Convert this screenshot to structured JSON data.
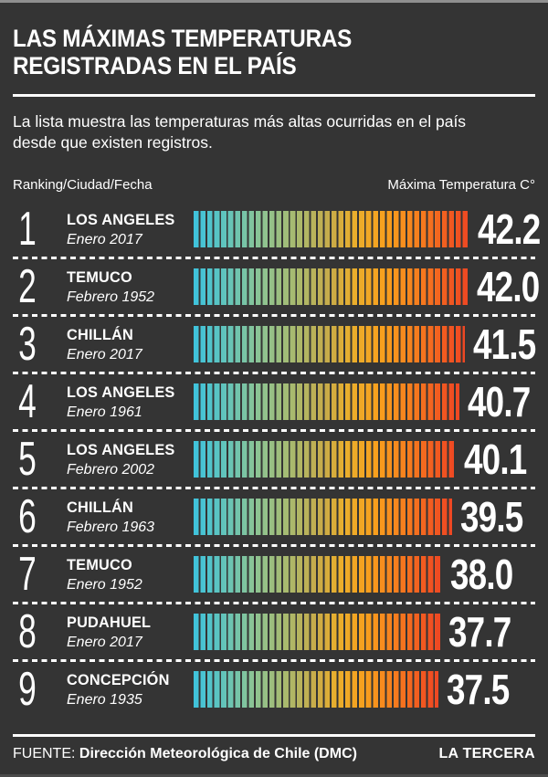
{
  "page": {
    "background": "#343434",
    "top_edge_color": "#8f8f8f",
    "text_color": "#ffffff"
  },
  "header": {
    "title_lines": [
      "LAS MÁXIMAS TEMPERATURAS",
      "REGISTRADAS EN EL PAÍS"
    ],
    "subtitle_lines": [
      "La lista muestra las temperaturas más altas ocurridas en el país",
      "desde que existen registros."
    ],
    "columns": {
      "left": "Ranking/Ciudad/Fecha",
      "right": "Máxima Temperatura C°"
    }
  },
  "chart_data": {
    "type": "bar",
    "orientation": "horizontal",
    "title": "LAS MÁXIMAS TEMPERATURAS REGISTRADAS EN EL PAÍS",
    "unit": "°C",
    "value_axis_max": 42.2,
    "categories": [
      "LOS ANGELES",
      "TEMUCO",
      "CHILLÁN",
      "LOS ANGELES",
      "LOS ANGELES",
      "CHILLÁN",
      "TEMUCO",
      "PUDAHUEL",
      "CONCEPCIÓN"
    ],
    "values": [
      42.2,
      42.0,
      41.5,
      40.7,
      40.1,
      39.5,
      38.0,
      37.7,
      37.5
    ],
    "rows": [
      {
        "rank": "1",
        "city": "LOS ANGELES",
        "date": "Enero 2017",
        "temp": "42.2"
      },
      {
        "rank": "2",
        "city": "TEMUCO",
        "date": "Febrero 1952",
        "temp": "42.0"
      },
      {
        "rank": "3",
        "city": "CHILLÁN",
        "date": "Enero 2017",
        "temp": "41.5"
      },
      {
        "rank": "4",
        "city": "LOS ANGELES",
        "date": "Enero 1961",
        "temp": "40.7"
      },
      {
        "rank": "5",
        "city": "LOS ANGELES",
        "date": "Febrero 2002",
        "temp": "40.1"
      },
      {
        "rank": "6",
        "city": "CHILLÁN",
        "date": "Febrero 1963",
        "temp": "39.5"
      },
      {
        "rank": "7",
        "city": "TEMUCO",
        "date": "Enero 1952",
        "temp": "38.0"
      },
      {
        "rank": "8",
        "city": "PUDAHUEL",
        "date": "Enero 2017",
        "temp": "37.7"
      },
      {
        "rank": "9",
        "city": "CONCEPCIÓN",
        "date": "Enero 1935",
        "temp": "37.5"
      }
    ],
    "bar_gradient": [
      {
        "pos": 0,
        "color": "#3ec3dd"
      },
      {
        "pos": 12,
        "color": "#62c4bb"
      },
      {
        "pos": 25,
        "color": "#8ec492"
      },
      {
        "pos": 38,
        "color": "#aab96c"
      },
      {
        "pos": 50,
        "color": "#c9ab48"
      },
      {
        "pos": 58,
        "color": "#e9af2d"
      },
      {
        "pos": 70,
        "color": "#f89f1d"
      },
      {
        "pos": 82,
        "color": "#f67d1e"
      },
      {
        "pos": 92,
        "color": "#f25c20"
      },
      {
        "pos": 100,
        "color": "#ee4723"
      }
    ],
    "stripe_gap_color": "#343434"
  },
  "footer": {
    "source_label": "FUENTE:",
    "source_value": "Dirección Meteorológica de Chile (DMC)",
    "brand": "LA TERCERA"
  }
}
